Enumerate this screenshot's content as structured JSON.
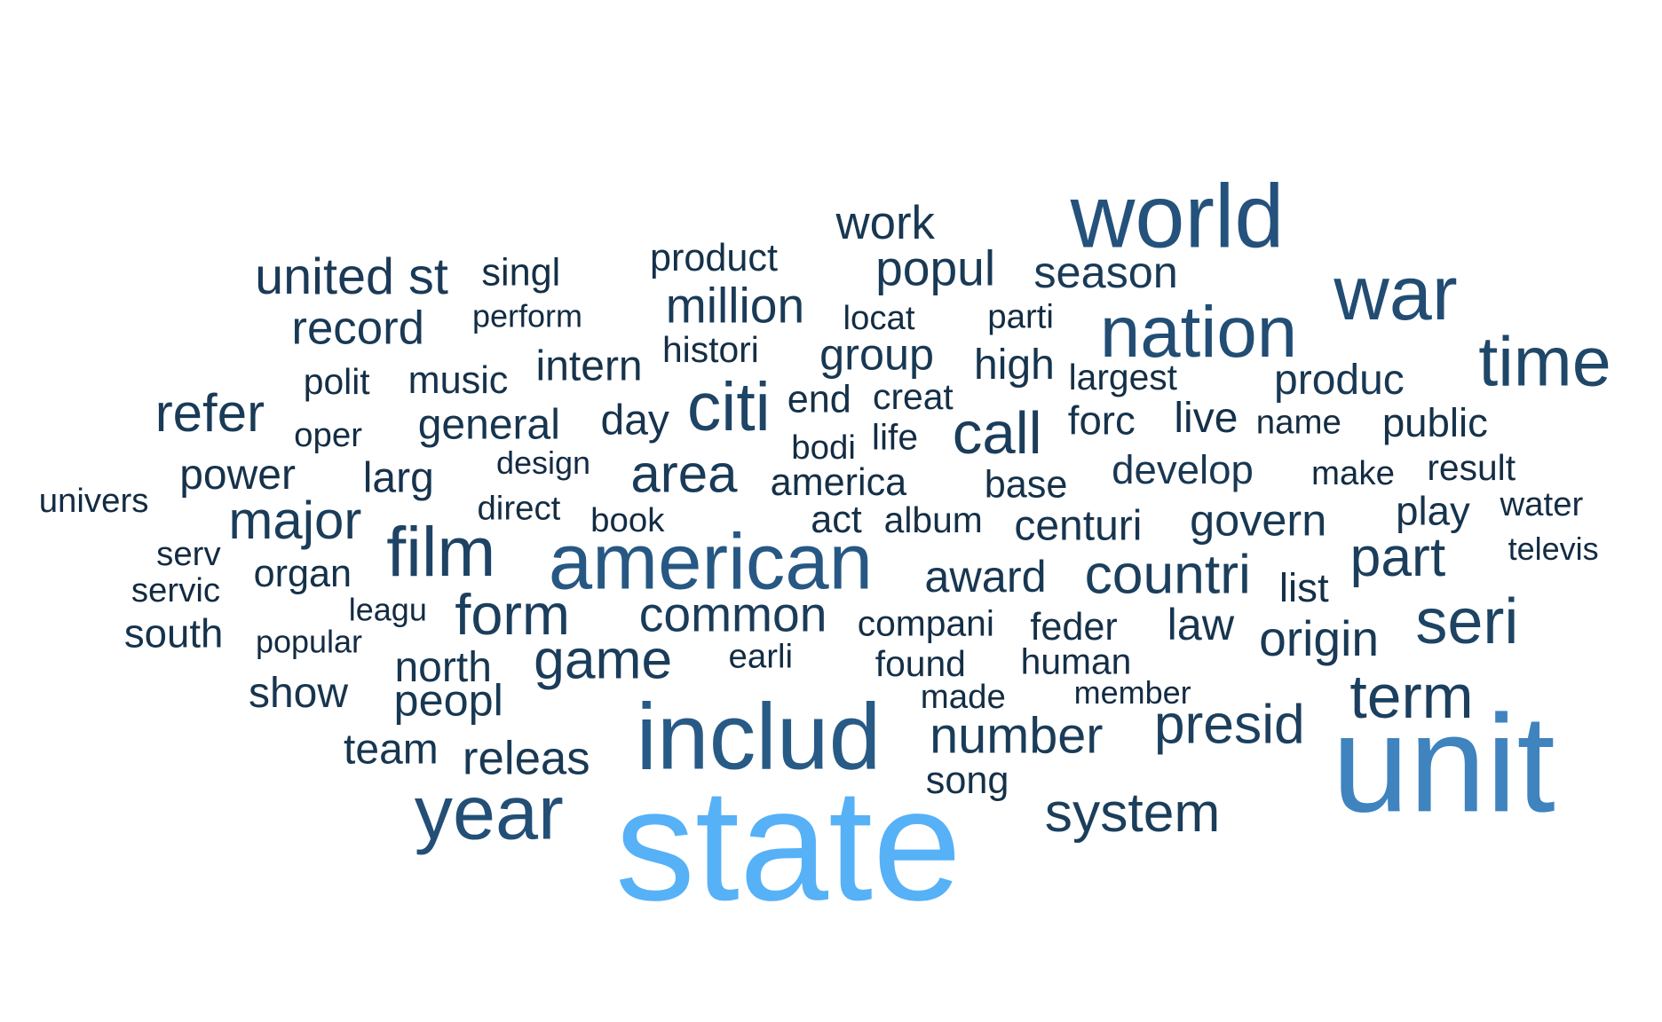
{
  "colors": {
    "background": "#ffffff",
    "darkest": "#132B43",
    "lightest": "#56B1F7"
  },
  "words": [
    {
      "text": "state",
      "color": "#56B1F7"
    },
    {
      "text": "unit",
      "color": "#3F83BF"
    },
    {
      "text": "includ",
      "color": "#285A86"
    },
    {
      "text": "american",
      "color": "#275884"
    },
    {
      "text": "world",
      "color": "#25527C"
    },
    {
      "text": "year",
      "color": "#234F77"
    },
    {
      "text": "nation",
      "color": "#224D74"
    },
    {
      "text": "war",
      "color": "#224C72"
    },
    {
      "text": "time",
      "color": "#1F4768"
    },
    {
      "text": "citi",
      "color": "#1E4466"
    },
    {
      "text": "seri",
      "color": "#1E4464"
    },
    {
      "text": "film",
      "color": "#1E4364"
    },
    {
      "text": "term",
      "color": "#1C3F5E"
    },
    {
      "text": "presid",
      "color": "#1C3F5D"
    },
    {
      "text": "countri",
      "color": "#1C3F5D"
    },
    {
      "text": "form",
      "color": "#1B3E5C"
    },
    {
      "text": "part",
      "color": "#1B3E5C"
    },
    {
      "text": "system",
      "color": "#1B3E5B"
    },
    {
      "text": "call",
      "color": "#1B3D5B"
    },
    {
      "text": "major",
      "color": "#1B3D5A"
    },
    {
      "text": "game",
      "color": "#1B3C5A"
    },
    {
      "text": "number",
      "color": "#1A3C59"
    },
    {
      "text": "common",
      "color": "#1A3C59"
    },
    {
      "text": "area",
      "color": "#1A3B58"
    },
    {
      "text": "refer",
      "color": "#1A3B57"
    },
    {
      "text": "million",
      "color": "#1A3B57"
    },
    {
      "text": "united st",
      "color": "#1A3A57"
    },
    {
      "text": "popul",
      "color": "#193A56"
    },
    {
      "text": "season",
      "color": "#193A56"
    },
    {
      "text": "origin",
      "color": "#193955"
    },
    {
      "text": "record",
      "color": "#193955"
    },
    {
      "text": "releas",
      "color": "#193954"
    },
    {
      "text": "group",
      "color": "#183853"
    },
    {
      "text": "produc",
      "color": "#183853"
    },
    {
      "text": "govern",
      "color": "#183853"
    },
    {
      "text": "peopl",
      "color": "#183852"
    },
    {
      "text": "award",
      "color": "#183752"
    },
    {
      "text": "develop",
      "color": "#183752"
    },
    {
      "text": "work",
      "color": "#183751"
    },
    {
      "text": "north",
      "color": "#173650"
    },
    {
      "text": "team",
      "color": "#173650"
    },
    {
      "text": "show",
      "color": "#17354F"
    },
    {
      "text": "law",
      "color": "#17354F"
    },
    {
      "text": "general",
      "color": "#17354E"
    },
    {
      "text": "day",
      "color": "#17344E"
    },
    {
      "text": "centuri",
      "color": "#17344E"
    },
    {
      "text": "high",
      "color": "#17344D"
    },
    {
      "text": "play",
      "color": "#16344D"
    },
    {
      "text": "south",
      "color": "#16334C"
    },
    {
      "text": "larg",
      "color": "#16334C"
    },
    {
      "text": "forc",
      "color": "#16334C"
    },
    {
      "text": "intern",
      "color": "#16334B"
    },
    {
      "text": "power",
      "color": "#16324B"
    },
    {
      "text": "music",
      "color": "#16324B"
    },
    {
      "text": "base",
      "color": "#16324A"
    },
    {
      "text": "public",
      "color": "#16324A"
    },
    {
      "text": "live",
      "color": "#15314A"
    },
    {
      "text": "song",
      "color": "#153149"
    },
    {
      "text": "organ",
      "color": "#153149"
    },
    {
      "text": "product",
      "color": "#153149"
    },
    {
      "text": "america",
      "color": "#153048"
    },
    {
      "text": "end",
      "color": "#153048"
    },
    {
      "text": "act",
      "color": "#153048"
    },
    {
      "text": "feder",
      "color": "#153047"
    },
    {
      "text": "human",
      "color": "#142F47"
    },
    {
      "text": "found",
      "color": "#142F47"
    },
    {
      "text": "list",
      "color": "#142F46"
    },
    {
      "text": "creat",
      "color": "#142F46"
    },
    {
      "text": "singl",
      "color": "#142F46"
    },
    {
      "text": "album",
      "color": "#142E45"
    },
    {
      "text": "compani",
      "color": "#142E45"
    },
    {
      "text": "largest",
      "color": "#142E45"
    },
    {
      "text": "polit",
      "color": "#142E45"
    },
    {
      "text": "histori",
      "color": "#142E44"
    },
    {
      "text": "result",
      "color": "#142D44"
    },
    {
      "text": "water",
      "color": "#142D44"
    },
    {
      "text": "made",
      "color": "#132D44"
    },
    {
      "text": "oper",
      "color": "#132D43"
    },
    {
      "text": "direct",
      "color": "#132D43"
    },
    {
      "text": "book",
      "color": "#132C43"
    },
    {
      "text": "earli",
      "color": "#132C43"
    },
    {
      "text": "parti",
      "color": "#132C43"
    },
    {
      "text": "life",
      "color": "#132C43"
    },
    {
      "text": "bodi",
      "color": "#132C43"
    },
    {
      "text": "locat",
      "color": "#132C43"
    },
    {
      "text": "name",
      "color": "#132C43"
    },
    {
      "text": "make",
      "color": "#132C43"
    },
    {
      "text": "member",
      "color": "#132B43"
    },
    {
      "text": "perform",
      "color": "#132B43"
    },
    {
      "text": "servic",
      "color": "#132B43"
    },
    {
      "text": "univers",
      "color": "#132B43"
    },
    {
      "text": "serv",
      "color": "#132B43"
    },
    {
      "text": "design",
      "color": "#132B43"
    },
    {
      "text": "leagu",
      "color": "#132B43"
    },
    {
      "text": "popular",
      "color": "#132B43"
    },
    {
      "text": "televis",
      "color": "#132B43"
    }
  ]
}
